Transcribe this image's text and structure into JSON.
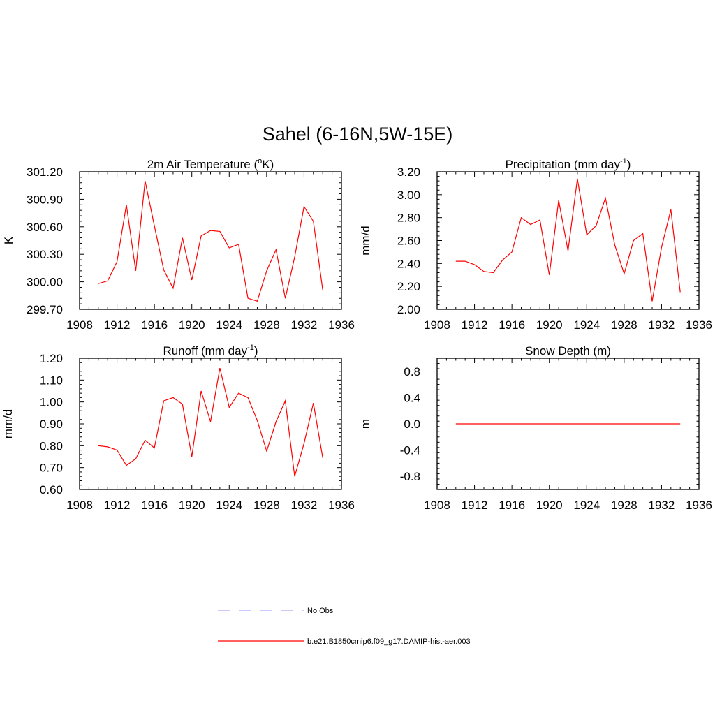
{
  "figure": {
    "title": "Sahel (6-16N,5W-15E)"
  },
  "chart_data": [
    {
      "type": "line",
      "title": "2m Air Temperature (oK)",
      "title_parts": [
        "2m Air Temperature (",
        "o",
        "K)"
      ],
      "ylabel": "K",
      "xlim": [
        1908,
        1936
      ],
      "ylim": [
        299.7,
        301.2
      ],
      "xticks": [
        1908,
        1912,
        1916,
        1920,
        1924,
        1928,
        1932,
        1936
      ],
      "yticks": [
        "299.70",
        "300.00",
        "300.30",
        "300.60",
        "300.90",
        "301.20"
      ],
      "grid": false,
      "series": [
        {
          "name": "b.e21.B1850cmip6.f09_g17.DAMIP-hist-aer.003",
          "color": "#ff0000",
          "x": [
            1910,
            1911,
            1912,
            1913,
            1914,
            1915,
            1916,
            1917,
            1918,
            1919,
            1920,
            1921,
            1922,
            1923,
            1924,
            1925,
            1926,
            1927,
            1928,
            1929,
            1930,
            1931,
            1932,
            1933,
            1934
          ],
          "values": [
            299.98,
            300.01,
            300.22,
            300.84,
            300.12,
            301.1,
            300.61,
            300.13,
            299.93,
            300.48,
            300.02,
            300.5,
            300.56,
            300.55,
            300.37,
            300.41,
            299.82,
            299.79,
            300.12,
            300.35,
            299.82,
            300.27,
            300.82,
            300.66,
            299.91
          ]
        }
      ]
    },
    {
      "type": "line",
      "title": "Precipitation (mm day-1)",
      "title_parts": [
        "Precipitation (mm day",
        "-1",
        ")"
      ],
      "ylabel": "mm/d",
      "xlim": [
        1908,
        1936
      ],
      "ylim": [
        2.0,
        3.2
      ],
      "xticks": [
        1908,
        1912,
        1916,
        1920,
        1924,
        1928,
        1932,
        1936
      ],
      "yticks": [
        "2.00",
        "2.20",
        "2.40",
        "2.60",
        "2.80",
        "3.00",
        "3.20"
      ],
      "grid": false,
      "series": [
        {
          "name": "b.e21.B1850cmip6.f09_g17.DAMIP-hist-aer.003",
          "color": "#ff0000",
          "x": [
            1910,
            1911,
            1912,
            1913,
            1914,
            1915,
            1916,
            1917,
            1918,
            1919,
            1920,
            1921,
            1922,
            1923,
            1924,
            1925,
            1926,
            1927,
            1928,
            1929,
            1930,
            1931,
            1932,
            1933,
            1934
          ],
          "values": [
            2.42,
            2.42,
            2.39,
            2.33,
            2.32,
            2.43,
            2.5,
            2.8,
            2.74,
            2.78,
            2.3,
            2.95,
            2.51,
            3.14,
            2.65,
            2.73,
            2.97,
            2.56,
            2.31,
            2.6,
            2.66,
            2.07,
            2.54,
            2.87,
            2.15
          ]
        }
      ]
    },
    {
      "type": "line",
      "title": "Runoff (mm day-1)",
      "title_parts": [
        "Runoff (mm day",
        "-1",
        ")"
      ],
      "ylabel": "mm/d",
      "xlim": [
        1908,
        1936
      ],
      "ylim": [
        0.6,
        1.2
      ],
      "xticks": [
        1908,
        1912,
        1916,
        1920,
        1924,
        1928,
        1932,
        1936
      ],
      "yticks": [
        "0.60",
        "0.70",
        "0.80",
        "0.90",
        "1.00",
        "1.10",
        "1.20"
      ],
      "grid": false,
      "series": [
        {
          "name": "b.e21.B1850cmip6.f09_g17.DAMIP-hist-aer.003",
          "color": "#ff0000",
          "x": [
            1910,
            1911,
            1912,
            1913,
            1914,
            1915,
            1916,
            1917,
            1918,
            1919,
            1920,
            1921,
            1922,
            1923,
            1924,
            1925,
            1926,
            1927,
            1928,
            1929,
            1930,
            1931,
            1932,
            1933,
            1934
          ],
          "values": [
            0.8,
            0.795,
            0.78,
            0.71,
            0.74,
            0.825,
            0.79,
            1.005,
            1.02,
            0.99,
            0.75,
            1.05,
            0.91,
            1.155,
            0.975,
            1.04,
            1.02,
            0.915,
            0.775,
            0.91,
            1.005,
            0.66,
            0.81,
            0.995,
            0.745
          ]
        }
      ]
    },
    {
      "type": "line",
      "title": "Snow Depth (m)",
      "title_parts": [
        "Snow Depth (m)",
        "",
        ""
      ],
      "ylabel": "m",
      "xlim": [
        1908,
        1936
      ],
      "ylim": [
        -1.0,
        1.0
      ],
      "xticks": [
        1908,
        1912,
        1916,
        1920,
        1924,
        1928,
        1932,
        1936
      ],
      "yticks": [
        "-0.8",
        "-0.4",
        "0.0",
        "0.4",
        "0.8"
      ],
      "grid": false,
      "series": [
        {
          "name": "b.e21.B1850cmip6.f09_g17.DAMIP-hist-aer.003",
          "color": "#ff0000",
          "x": [
            1910,
            1911,
            1912,
            1913,
            1914,
            1915,
            1916,
            1917,
            1918,
            1919,
            1920,
            1921,
            1922,
            1923,
            1924,
            1925,
            1926,
            1927,
            1928,
            1929,
            1930,
            1931,
            1932,
            1933,
            1934
          ],
          "values": [
            0,
            0,
            0,
            0,
            0,
            0,
            0,
            0,
            0,
            0,
            0,
            0,
            0,
            0,
            0,
            0,
            0,
            0,
            0,
            0,
            0,
            0,
            0,
            0,
            0
          ]
        }
      ]
    }
  ],
  "legend": {
    "placement": "bottom-center",
    "items": [
      {
        "label": "No Obs",
        "color": "#aaaaff",
        "style": "dashed"
      },
      {
        "label": "b.e21.B1850cmip6.f09_g17.DAMIP-hist-aer.003",
        "color": "#ff0000",
        "style": "solid"
      }
    ]
  }
}
